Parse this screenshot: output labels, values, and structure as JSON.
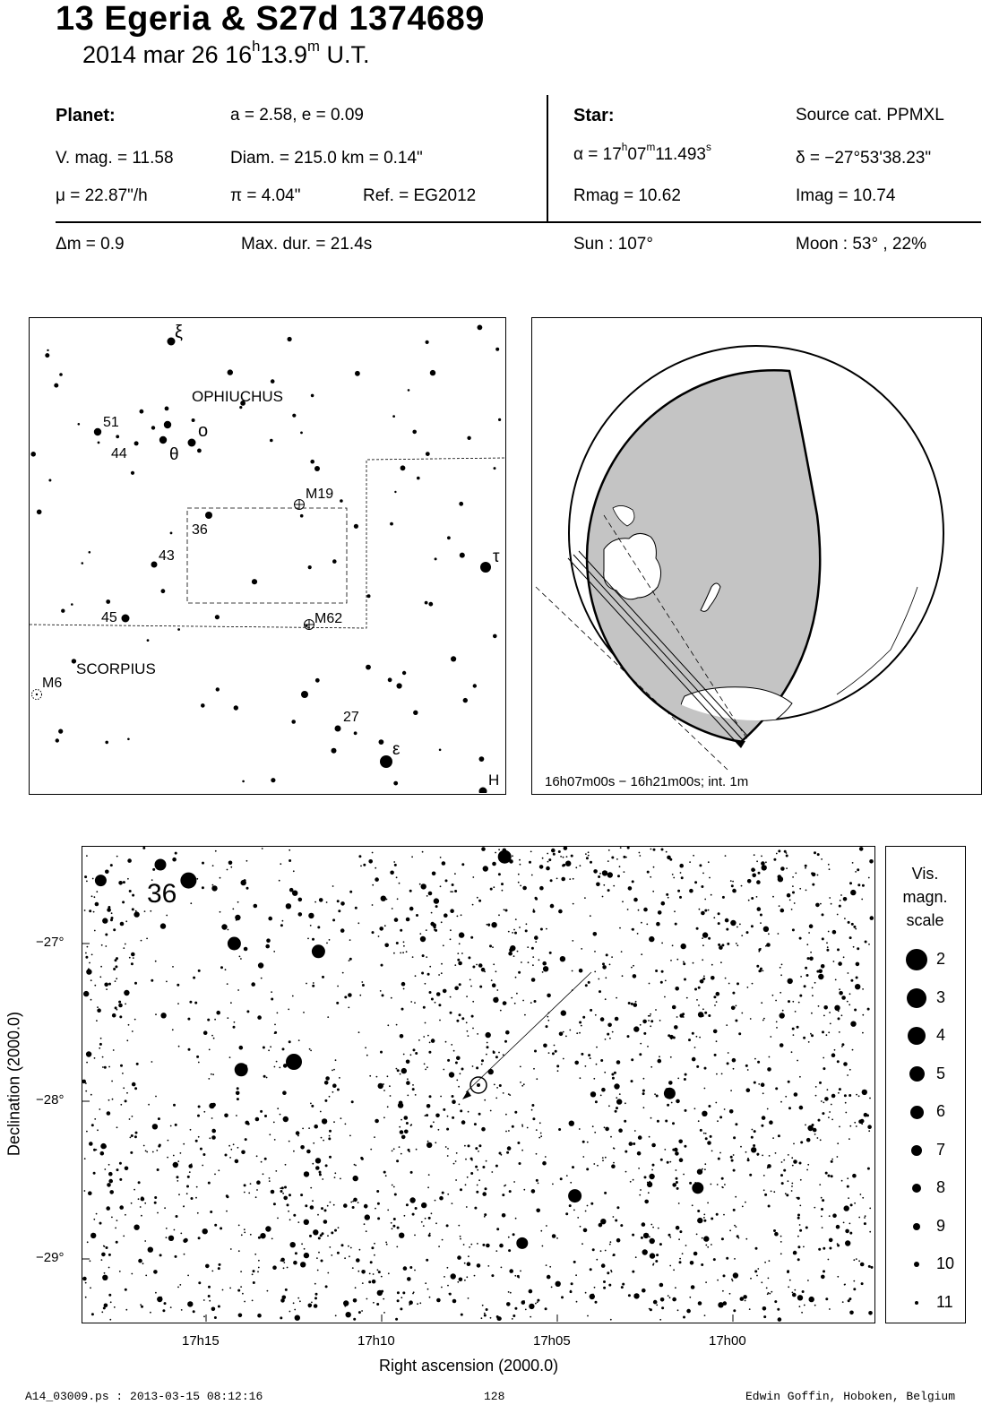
{
  "header": {
    "title": "13 Egeria  &  S27d 1374689",
    "date_text": "2014 mar 26  16",
    "date_h": "h",
    "date_min": "13.9",
    "date_m": "m",
    "date_ut": " U.T."
  },
  "planet": {
    "label": "Planet:",
    "orbit": "a = 2.58, e = 0.09",
    "vmag": "V. mag. = 11.58",
    "diam": "Diam. = 215.0 km = 0.14\"",
    "mu": "μ =  22.87\"/h",
    "pi": "π =  4.04\"",
    "ref": "Ref. = EG2012"
  },
  "star": {
    "label": "Star:",
    "source": "Source cat.  PPMXL",
    "ra_prefix": "α = 17",
    "ra_h": "h",
    "ra_min": "07",
    "ra_m": "m",
    "ra_sec": "11.493",
    "ra_s": "s",
    "dec": "δ = −27°53'38.23\"",
    "rmag": "Rmag = 10.62",
    "imag": "Imag = 10.74"
  },
  "event": {
    "dm": "Δm = 0.9",
    "maxdur": "Max. dur. = 21.4s",
    "sun": "Sun : 107°",
    "moon": "Moon :  53° , 22%"
  },
  "finder": {
    "constellations": [
      "OPHIUCHUS",
      "SCORPIUS"
    ],
    "labels": {
      "xi": "ξ",
      "omicron": "ο",
      "theta": "θ",
      "tau": "τ",
      "epsilon": "ε",
      "n51": "51",
      "n44": "44",
      "n43": "43",
      "n36": "36",
      "n45": "45",
      "n27": "27",
      "H": "H",
      "M19": "M19",
      "M62": "M62",
      "M6": "M6"
    }
  },
  "globe": {
    "caption": "16h07m00s − 16h21m00s; int.  1m"
  },
  "chart_data": {
    "type": "scatter",
    "xlabel": "Right ascension (2000.0)",
    "ylabel": "Declination (2000.0)",
    "x_ticks": [
      "17h15",
      "17h10",
      "17h05",
      "17h00"
    ],
    "y_ticks": [
      "−27°",
      "−28°",
      "−29°"
    ],
    "star_label": "36",
    "bright_stars": [
      {
        "ra": "17h15.5",
        "dec": -26.6,
        "mag": 4
      },
      {
        "ra": "17h16.3",
        "dec": -26.5,
        "mag": 6
      },
      {
        "ra": "17h18.0",
        "dec": -26.6,
        "mag": 6
      },
      {
        "ra": "17h14.2",
        "dec": -27.0,
        "mag": 5
      },
      {
        "ra": "17h11.8",
        "dec": -27.05,
        "mag": 5
      },
      {
        "ra": "17h12.5",
        "dec": -27.75,
        "mag": 4
      },
      {
        "ra": "17h14.0",
        "dec": -27.8,
        "mag": 5
      },
      {
        "ra": "17h06.5",
        "dec": -26.45,
        "mag": 5
      },
      {
        "ra": "17h04.5",
        "dec": -28.6,
        "mag": 5
      },
      {
        "ra": "17h01.8",
        "dec": -27.95,
        "mag": 6
      },
      {
        "ra": "17h01.0",
        "dec": -28.55,
        "mag": 6
      },
      {
        "ra": "17h06.0",
        "dec": -28.9,
        "mag": 6
      }
    ],
    "target_star": {
      "ra": "17h07m11.493s",
      "dec": "−27°53'38.23\""
    }
  },
  "scale": {
    "title": [
      "Vis.",
      "magn.",
      "scale"
    ],
    "mags": [
      "2",
      "3",
      "4",
      "5",
      "6",
      "7",
      "8",
      "9",
      "10",
      "11"
    ]
  },
  "footer": {
    "file": "A14_03009.ps : 2013-03-15 08:12:16",
    "page": "128",
    "author": "Edwin Goffin, Hoboken, Belgium"
  }
}
